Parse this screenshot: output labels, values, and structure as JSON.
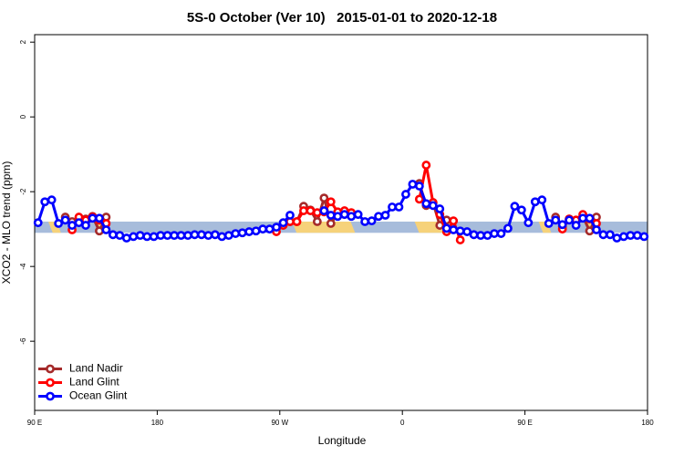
{
  "chart_data": {
    "type": "line",
    "title": "5S-0 October (Ver 10)   2015-01-01 to 2020-12-18",
    "x_label": "Longitude",
    "y_label": "XCO2 - MLO trend (ppm)",
    "xlim": [
      90,
      540
    ],
    "ylim": [
      -7.85,
      2.2
    ],
    "xticks": [
      {
        "value": 90,
        "label": "90 E"
      },
      180,
      {
        "value": 270,
        "label": "90 W"
      },
      {
        "value": 360,
        "label": "0"
      },
      {
        "value": 450,
        "label": "90 E"
      },
      {
        "value": 540,
        "label": "180"
      }
    ],
    "yticks": [
      2,
      0,
      -2,
      -4,
      -6
    ],
    "legend": "bottomleft",
    "band": {
      "ylim": [
        -3.1,
        -2.8
      ],
      "color": "#a7bcdb"
    },
    "land_spans": [
      [
        100,
        106
      ],
      [
        134,
        140
      ],
      [
        279,
        322
      ],
      [
        369,
        393
      ],
      [
        460,
        466
      ],
      [
        494,
        500
      ]
    ],
    "land_color": "#f6d27a",
    "x": [
      92.5,
      97.5,
      102.5,
      107.5,
      112.5,
      117.5,
      122.5,
      127.5,
      132.5,
      137.5,
      142.5,
      147.5,
      152.5,
      157.5,
      162.5,
      167.5,
      172.5,
      177.5,
      182.5,
      187.5,
      192.5,
      197.5,
      202.5,
      207.5,
      212.5,
      217.5,
      222.5,
      227.5,
      232.5,
      237.5,
      242.5,
      247.5,
      252.5,
      257.5,
      262.5,
      267.5,
      272.5,
      277.5,
      282.5,
      287.5,
      292.5,
      297.5,
      302.5,
      307.5,
      312.5,
      317.5,
      322.5,
      327.5,
      332.5,
      337.5,
      342.5,
      347.5,
      352.5,
      357.5,
      362.5,
      367.5,
      372.5,
      377.5,
      382.5,
      387.5,
      392.5,
      397.5,
      402.5,
      407.5,
      412.5,
      417.5,
      422.5,
      427.5,
      432.5,
      437.5,
      442.5,
      447.5,
      452.5,
      457.5,
      462.5,
      467.5,
      472.5,
      477.5,
      482.5,
      487.5,
      492.5,
      497.5,
      502.5,
      507.5,
      512.5,
      517.5,
      522.5,
      527.5,
      532.5,
      537.5
    ],
    "series": [
      {
        "name": "Land Nadir",
        "color": "#a52a2a",
        "values": [
          null,
          null,
          null,
          null,
          -2.68,
          -2.8,
          -2.73,
          -2.73,
          -2.66,
          -3.05,
          -2.68,
          null,
          null,
          null,
          null,
          null,
          null,
          null,
          null,
          null,
          null,
          null,
          null,
          null,
          null,
          null,
          null,
          null,
          null,
          null,
          null,
          null,
          null,
          null,
          null,
          null,
          null,
          -2.8,
          -2.8,
          -2.39,
          -2.49,
          -2.8,
          -2.17,
          -2.85,
          -2.59,
          -2.61,
          null,
          null,
          null,
          null,
          null,
          null,
          null,
          null,
          null,
          null,
          -1.78,
          -2.37,
          -2.29,
          -2.9,
          -2.76,
          null,
          null,
          null,
          null,
          null,
          null,
          null,
          null,
          null,
          null,
          null,
          null,
          null,
          null,
          null,
          -2.68,
          -2.93,
          -2.73,
          -2.76,
          -2.66,
          -3.05,
          -2.68,
          null,
          null,
          null,
          null,
          null,
          null,
          null
        ]
      },
      {
        "name": "Land Glint",
        "color": "#ff0000",
        "values": [
          null,
          null,
          null,
          null,
          null,
          -3.02,
          -2.68,
          -2.76,
          -2.68,
          -2.76,
          -2.85,
          null,
          null,
          null,
          null,
          null,
          null,
          null,
          null,
          null,
          null,
          null,
          null,
          null,
          null,
          null,
          null,
          null,
          null,
          null,
          null,
          null,
          null,
          null,
          null,
          -3.07,
          -2.9,
          -2.8,
          -2.8,
          -2.51,
          -2.51,
          -2.56,
          -2.54,
          -2.27,
          -2.54,
          -2.51,
          -2.56,
          null,
          null,
          null,
          null,
          null,
          null,
          null,
          null,
          null,
          -2.2,
          -1.29,
          -2.29,
          -2.61,
          -3.07,
          -2.78,
          -3.29,
          null,
          null,
          null,
          null,
          null,
          null,
          null,
          null,
          null,
          null,
          null,
          null,
          null,
          null,
          -3.0,
          -2.73,
          -2.76,
          -2.61,
          -2.73,
          -2.85,
          null,
          null,
          null,
          null,
          null,
          null,
          null
        ]
      },
      {
        "name": "Ocean Glint",
        "color": "#0000ff",
        "values": [
          -2.83,
          -2.27,
          -2.22,
          -2.85,
          -2.76,
          -2.9,
          -2.83,
          -2.9,
          -2.71,
          -2.71,
          -3.02,
          -3.15,
          -3.17,
          -3.24,
          -3.2,
          -3.17,
          -3.2,
          -3.2,
          -3.17,
          -3.17,
          -3.17,
          -3.17,
          -3.17,
          -3.15,
          -3.15,
          -3.17,
          -3.15,
          -3.2,
          -3.17,
          -3.12,
          -3.1,
          -3.07,
          -3.05,
          -3.0,
          -3.0,
          -2.95,
          -2.83,
          -2.63,
          null,
          null,
          null,
          null,
          -2.51,
          -2.63,
          -2.66,
          -2.61,
          -2.66,
          -2.61,
          -2.8,
          -2.78,
          -2.66,
          -2.63,
          -2.41,
          -2.41,
          -2.07,
          -1.8,
          -1.85,
          -2.32,
          -2.37,
          -2.46,
          -2.98,
          -3.02,
          -3.05,
          -3.07,
          -3.15,
          -3.17,
          -3.17,
          -3.12,
          -3.12,
          -2.98,
          -2.39,
          -2.49,
          -2.83,
          -2.27,
          -2.22,
          -2.85,
          -2.76,
          -2.88,
          -2.76,
          -2.9,
          -2.71,
          -2.71,
          -3.02,
          -3.15,
          -3.15,
          -3.24,
          -3.2,
          -3.17,
          -3.17,
          -3.2
        ]
      }
    ]
  }
}
